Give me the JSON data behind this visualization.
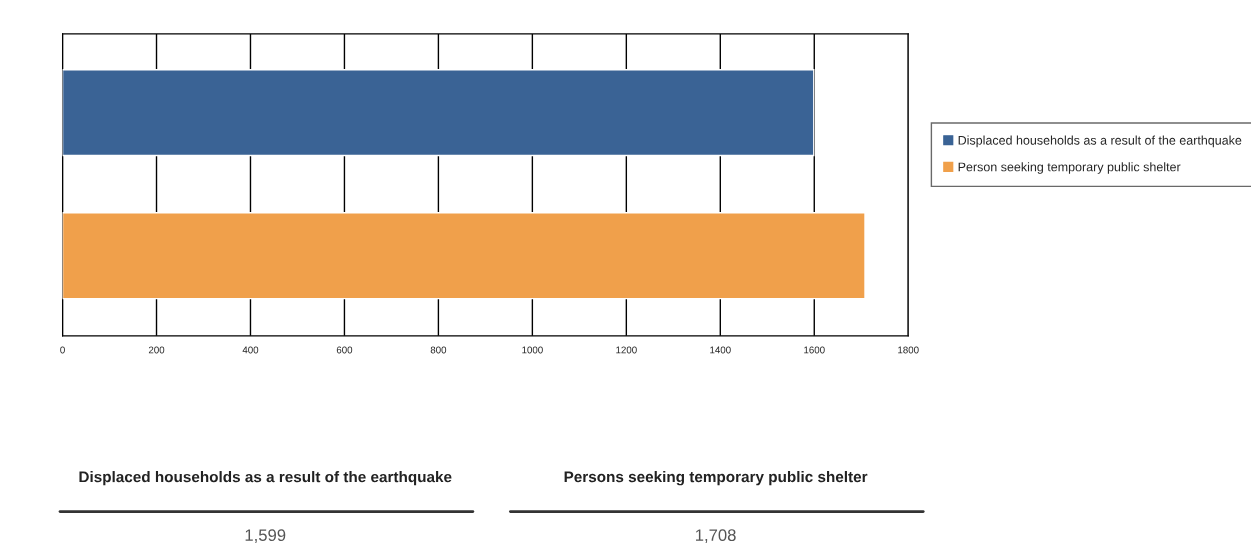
{
  "chart_data": {
    "type": "bar",
    "orientation": "horizontal",
    "categories": [
      null,
      null
    ],
    "series": [
      {
        "name": "Displaced households as a result of the earthquake",
        "color": "#3a6395",
        "values": [
          1599,
          null
        ]
      },
      {
        "name": "Person seeking temporary public shelter",
        "color": "#f0a04b",
        "values": [
          null,
          1708
        ]
      }
    ],
    "xlim": [
      0,
      1800
    ],
    "xticks": [
      0,
      200,
      400,
      600,
      800,
      1000,
      1200,
      1400,
      1600,
      1800
    ],
    "grid": "x",
    "legend": "right",
    "annotations": [
      "Displaced households as a result of the earthquake",
      "1,599",
      "Persons seeking temporary public shelter",
      "1,708"
    ]
  }
}
